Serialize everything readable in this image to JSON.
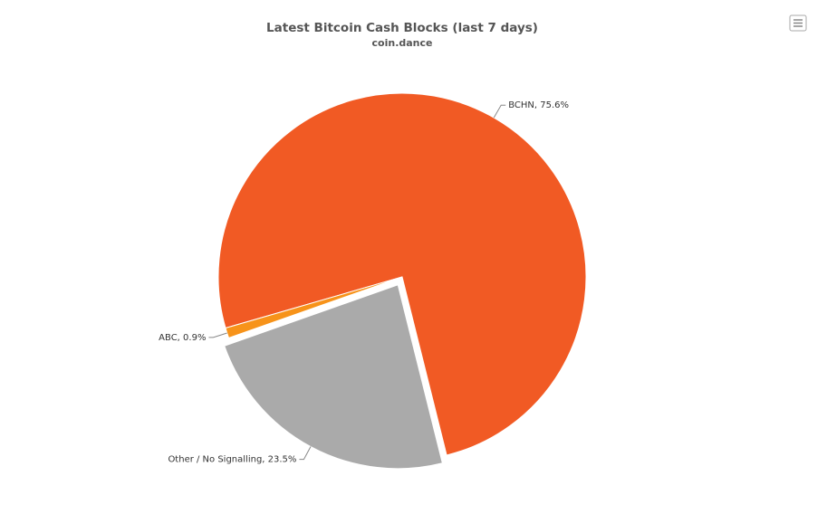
{
  "chart_data": {
    "type": "pie",
    "title": "Latest Bitcoin Cash Blocks (last 7 days)",
    "subtitle": "coin.dance",
    "values": [
      75.6,
      0.9,
      23.5
    ],
    "value_labels": [
      "BCHN, 75.6%",
      "ABC, 0.9%",
      "Other / No Signalling, 23.5%"
    ],
    "colors": [
      "#f15a24",
      "#f7931a",
      "#aaaaaa"
    ],
    "sliced": [
      false,
      false,
      true
    ]
  }
}
